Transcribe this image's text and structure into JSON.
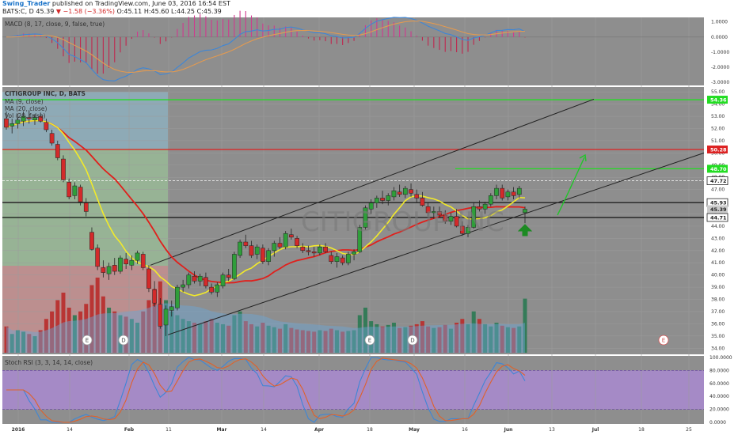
{
  "header": {
    "author": "Swing_Trader",
    "published": "published on TradingView.com, June 03, 2016 16:54 EST",
    "symbol": "BATS:C, D",
    "last": "45.39",
    "change": "▼ −1.58 (−3.36%)",
    "ohlc": "O:45.11 H:45.60 L:44.25 C:45.39"
  },
  "panes": {
    "macd_label": "MACD (8, 17, close, 9, false, true)",
    "main_title": "CITIGROUP INC, D, BATS",
    "ma9_label": "MA (9, close)",
    "ma20_label": "MA (20, close)",
    "vol_label": "Vol (20, false)",
    "watermark": "CITIGROUP INC",
    "rsi_label": "Stoch RSI (3, 3, 14, 14, close)"
  },
  "colors": {
    "candle_up": "#2f9e3a",
    "candle_down": "#d32a2a",
    "ma9": "#f2ea2a",
    "ma20": "#e0201c",
    "channel": "#222222",
    "hline_green": "#22dd22",
    "hline_red": "#dd2222",
    "rsi_fill": "#a98ad0",
    "macd_fast": "#3e86d6",
    "macd_slow": "#e39a50",
    "arrow": "#22c42a"
  },
  "chart_data": {
    "type": "candlestick",
    "symbol": "BATS:C",
    "interval": "D",
    "x_ticks": [
      "2016",
      "14",
      "Feb",
      "11",
      "Mar",
      "14",
      "Apr",
      "18",
      "May",
      "16",
      "Jun",
      "13",
      "Jul",
      "18",
      "25"
    ],
    "price_ticks": [
      "55.00",
      "54.00",
      "53.00",
      "52.00",
      "51.00",
      "50.00",
      "49.00",
      "48.00",
      "47.00",
      "46.00",
      "45.00",
      "44.00",
      "43.00",
      "42.00",
      "41.00",
      "40.00",
      "39.00",
      "38.00",
      "37.00",
      "36.00",
      "35.00",
      "34.00"
    ],
    "price_range": [
      33.5,
      55.4
    ],
    "price_labels": [
      {
        "value": 54.36,
        "text": "54.36",
        "color": "#22dd22"
      },
      {
        "value": 50.28,
        "text": "50.28",
        "color": "#dd2222"
      },
      {
        "value": 48.7,
        "text": "48.70",
        "color": "#22dd22"
      },
      {
        "value": 47.72,
        "text": "47.72",
        "color": "#ffffff"
      },
      {
        "value": 45.93,
        "text": "45.93",
        "color": "#ffffff"
      },
      {
        "value": 45.39,
        "text": "45.39",
        "color": "#cccccc"
      },
      {
        "value": 44.71,
        "text": "44.71",
        "color": "#ffffff"
      }
    ],
    "horizontal_lines": [
      {
        "value": 54.36,
        "color": "green"
      },
      {
        "value": 50.28,
        "color": "red"
      },
      {
        "value": 48.7,
        "color": "green"
      },
      {
        "value": 47.72,
        "color": "white-dashed"
      },
      {
        "value": 45.93,
        "color": "black"
      },
      {
        "value": 44.71,
        "color": "black"
      }
    ],
    "candles": [
      [
        52.8,
        53.4,
        51.9,
        52.1
      ],
      [
        52.2,
        52.8,
        51.6,
        52.4
      ],
      [
        52.4,
        53.2,
        52.0,
        52.7
      ],
      [
        52.6,
        53.4,
        52.2,
        53.0
      ],
      [
        52.9,
        53.5,
        52.4,
        52.8
      ],
      [
        52.7,
        53.2,
        52.3,
        52.9
      ],
      [
        53.0,
        53.3,
        52.5,
        52.6
      ],
      [
        52.5,
        52.8,
        51.7,
        51.9
      ],
      [
        51.6,
        51.9,
        50.6,
        50.8
      ],
      [
        50.7,
        51.0,
        49.4,
        49.6
      ],
      [
        49.5,
        49.8,
        47.6,
        47.8
      ],
      [
        47.6,
        47.9,
        46.2,
        46.4
      ],
      [
        46.5,
        47.6,
        46.2,
        47.3
      ],
      [
        47.2,
        47.4,
        45.7,
        46.0
      ],
      [
        45.9,
        46.3,
        44.8,
        45.2
      ],
      [
        43.5,
        43.9,
        42.0,
        42.1
      ],
      [
        42.2,
        42.5,
        40.4,
        40.7
      ],
      [
        40.6,
        41.2,
        39.8,
        40.2
      ],
      [
        40.1,
        41.0,
        39.6,
        40.7
      ],
      [
        40.8,
        41.4,
        40.0,
        40.3
      ],
      [
        40.3,
        41.6,
        40.1,
        41.4
      ],
      [
        41.3,
        41.8,
        40.5,
        40.9
      ],
      [
        40.8,
        41.6,
        40.4,
        41.2
      ],
      [
        41.2,
        42.0,
        40.9,
        41.8
      ],
      [
        41.7,
        41.9,
        40.4,
        40.6
      ],
      [
        40.5,
        40.8,
        38.6,
        38.9
      ],
      [
        38.8,
        39.5,
        37.4,
        37.7
      ],
      [
        37.6,
        38.1,
        35.6,
        35.8
      ],
      [
        35.9,
        37.5,
        35.0,
        37.2
      ],
      [
        37.1,
        37.9,
        36.6,
        37.4
      ],
      [
        37.3,
        39.2,
        37.1,
        39.0
      ],
      [
        39.0,
        39.6,
        38.6,
        39.2
      ],
      [
        39.2,
        40.2,
        38.9,
        40.0
      ],
      [
        39.9,
        40.3,
        39.3,
        39.5
      ],
      [
        39.5,
        40.1,
        39.1,
        39.9
      ],
      [
        39.8,
        40.2,
        38.9,
        39.1
      ],
      [
        39.0,
        39.3,
        38.4,
        38.6
      ],
      [
        38.6,
        39.4,
        38.2,
        39.2
      ],
      [
        39.1,
        40.2,
        38.9,
        40.0
      ],
      [
        40.0,
        40.5,
        39.5,
        39.8
      ],
      [
        39.7,
        41.9,
        39.6,
        41.7
      ],
      [
        41.6,
        42.9,
        41.4,
        42.7
      ],
      [
        42.7,
        43.3,
        42.2,
        42.4
      ],
      [
        42.4,
        42.8,
        41.4,
        41.6
      ],
      [
        41.7,
        42.5,
        41.3,
        42.3
      ],
      [
        42.2,
        42.5,
        40.9,
        41.1
      ],
      [
        41.1,
        42.2,
        40.8,
        42.0
      ],
      [
        42.0,
        42.8,
        41.5,
        42.6
      ],
      [
        42.6,
        43.1,
        42.1,
        42.3
      ],
      [
        42.3,
        43.6,
        42.1,
        43.4
      ],
      [
        43.3,
        43.8,
        42.9,
        43.1
      ],
      [
        43.0,
        43.2,
        42.2,
        42.4
      ],
      [
        42.3,
        42.6,
        41.8,
        42.0
      ],
      [
        42.0,
        42.4,
        41.6,
        41.9
      ],
      [
        41.9,
        42.3,
        41.5,
        41.8
      ],
      [
        41.8,
        42.5,
        41.6,
        42.3
      ],
      [
        42.3,
        42.6,
        41.8,
        41.9
      ],
      [
        41.6,
        41.9,
        40.9,
        41.1
      ],
      [
        41.1,
        41.8,
        40.6,
        41.5
      ],
      [
        41.4,
        41.6,
        40.8,
        41.0
      ],
      [
        41.0,
        41.9,
        40.8,
        41.7
      ],
      [
        41.7,
        42.1,
        41.2,
        41.9
      ],
      [
        41.9,
        44.1,
        41.8,
        43.9
      ],
      [
        43.9,
        45.7,
        43.7,
        45.5
      ],
      [
        45.4,
        46.2,
        45.0,
        45.9
      ],
      [
        45.9,
        46.5,
        45.5,
        46.3
      ],
      [
        46.3,
        46.9,
        45.8,
        46.1
      ],
      [
        46.1,
        46.7,
        45.7,
        46.5
      ],
      [
        46.4,
        47.2,
        46.1,
        46.9
      ],
      [
        46.8,
        47.4,
        46.4,
        46.6
      ],
      [
        46.6,
        47.3,
        46.3,
        47.1
      ],
      [
        47.0,
        47.5,
        46.4,
        46.7
      ],
      [
        46.6,
        47.0,
        45.9,
        46.3
      ],
      [
        46.3,
        46.8,
        45.6,
        45.7
      ],
      [
        45.6,
        45.9,
        44.8,
        45.1
      ],
      [
        45.1,
        45.6,
        44.6,
        45.2
      ],
      [
        45.2,
        45.6,
        44.7,
        44.9
      ],
      [
        44.9,
        45.3,
        44.2,
        44.4
      ],
      [
        44.4,
        45.1,
        44.1,
        44.8
      ],
      [
        44.8,
        45.4,
        43.9,
        44.0
      ],
      [
        44.0,
        44.4,
        43.2,
        43.4
      ],
      [
        43.4,
        44.1,
        43.1,
        43.9
      ],
      [
        43.9,
        45.9,
        43.8,
        45.6
      ],
      [
        45.6,
        46.1,
        45.2,
        45.4
      ],
      [
        45.4,
        46.0,
        45.0,
        45.8
      ],
      [
        45.8,
        46.7,
        45.6,
        46.5
      ],
      [
        46.5,
        47.4,
        46.2,
        47.1
      ],
      [
        47.1,
        47.4,
        46.1,
        46.3
      ],
      [
        46.4,
        47.0,
        46.1,
        46.8
      ],
      [
        46.8,
        47.2,
        46.2,
        46.5
      ],
      [
        46.6,
        47.3,
        46.3,
        47.1
      ],
      [
        45.11,
        45.6,
        44.25,
        45.39
      ]
    ],
    "volume_relative": [
      0.35,
      0.25,
      0.3,
      0.28,
      0.25,
      0.22,
      0.3,
      0.45,
      0.55,
      0.7,
      0.8,
      0.6,
      0.5,
      0.55,
      0.65,
      0.9,
      1.0,
      0.75,
      0.6,
      0.55,
      0.5,
      0.48,
      0.45,
      0.4,
      0.55,
      0.7,
      0.85,
      0.95,
      0.7,
      0.55,
      0.5,
      0.45,
      0.42,
      0.4,
      0.38,
      0.42,
      0.45,
      0.4,
      0.38,
      0.36,
      0.5,
      0.55,
      0.42,
      0.38,
      0.35,
      0.4,
      0.36,
      0.34,
      0.32,
      0.38,
      0.33,
      0.31,
      0.3,
      0.29,
      0.28,
      0.3,
      0.29,
      0.32,
      0.3,
      0.28,
      0.29,
      0.3,
      0.5,
      0.6,
      0.42,
      0.38,
      0.35,
      0.37,
      0.4,
      0.33,
      0.34,
      0.36,
      0.38,
      0.42,
      0.35,
      0.33,
      0.34,
      0.37,
      0.32,
      0.4,
      0.45,
      0.38,
      0.55,
      0.45,
      0.38,
      0.35,
      0.4,
      0.36,
      0.34,
      0.33,
      0.35,
      0.72
    ],
    "macd_ticks": [
      "1.0000",
      "0.0000",
      "-1.0000",
      "-2.0000",
      "-3.0000"
    ],
    "macd_range": [
      -3.2,
      1.3
    ],
    "rsi_ticks": [
      "100.0000",
      "80.0000",
      "60.0000",
      "40.0000",
      "20.0000",
      "0.0000"
    ],
    "rsi_range": [
      0,
      100
    ],
    "rsi_band": [
      20,
      80
    ],
    "events": [
      "E",
      "D",
      "E",
      "D",
      "E"
    ]
  }
}
